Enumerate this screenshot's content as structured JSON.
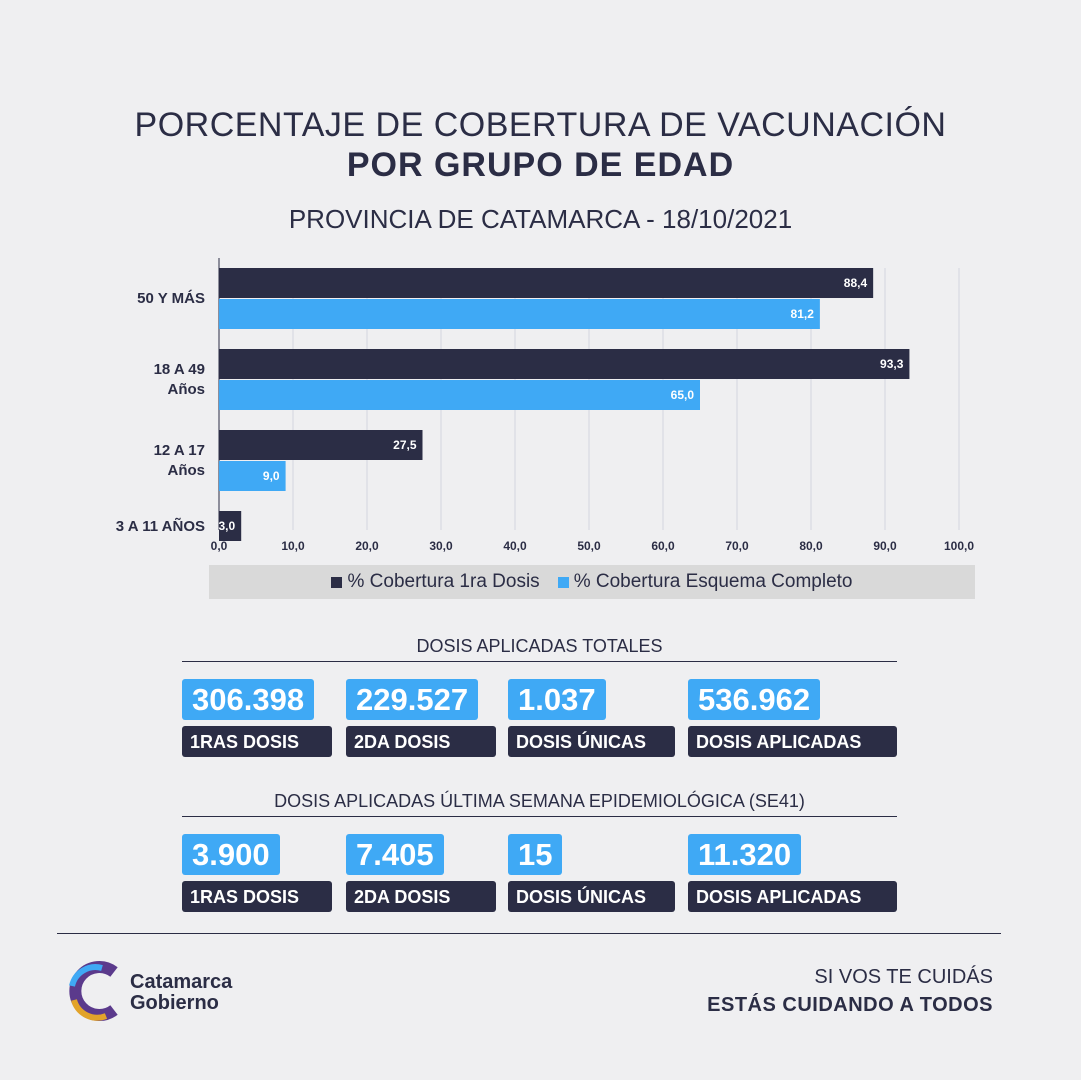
{
  "chart_data": {
    "type": "hbar",
    "title": "PORCENTAJE DE COBERTURA DE VACUNACIÓN",
    "subtitle": "POR GRUPO DE EDAD",
    "caption": "PROVINCIA DE CATAMARCA - 18/10/2021",
    "categories": [
      "50 Y MÁS",
      "18 A 49\nAños",
      "12 A 17\nAños",
      "3 A 11 AÑOS"
    ],
    "series": [
      {
        "name": "% Cobertura 1ra Dosis",
        "color": "#2b2d45",
        "values": [
          88.4,
          93.3,
          27.5,
          3.0
        ],
        "value_labels": [
          "88,4",
          "93,3",
          "27,5",
          "3,0"
        ]
      },
      {
        "name": "% Cobertura Esquema Completo",
        "color": "#3fa9f5",
        "values": [
          81.2,
          65.0,
          9.0,
          null
        ],
        "value_labels": [
          "81,2",
          "65,0",
          "9,0",
          null
        ]
      }
    ],
    "xlim": [
      0,
      100
    ],
    "xticks": [
      {
        "value": 0,
        "label": "0,0"
      },
      {
        "value": 10,
        "label": "10,0"
      },
      {
        "value": 20,
        "label": "20,0"
      },
      {
        "value": 30,
        "label": "30,0"
      },
      {
        "value": 40,
        "label": "40,0"
      },
      {
        "value": 50,
        "label": "50,0"
      },
      {
        "value": 60,
        "label": "60,0"
      },
      {
        "value": 70,
        "label": "70,0"
      },
      {
        "value": 80,
        "label": "80,0"
      },
      {
        "value": 90,
        "label": "90,0"
      },
      {
        "value": 100,
        "label": "100,0"
      }
    ],
    "grid": true,
    "legend": "bottom"
  },
  "sections": [
    {
      "title": "DOSIS APLICADAS TOTALES",
      "items": [
        {
          "value": "306.398",
          "label": "1RAS DOSIS"
        },
        {
          "value": "229.527",
          "label": "2DA DOSIS"
        },
        {
          "value": "1.037",
          "label": "DOSIS ÚNICAS"
        },
        {
          "value": "536.962",
          "label": "DOSIS APLICADAS"
        }
      ]
    },
    {
      "title": "DOSIS APLICADAS ÚLTIMA SEMANA EPIDEMIOLÓGICA (SE41)",
      "items": [
        {
          "value": "3.900",
          "label": "1RAS DOSIS"
        },
        {
          "value": "7.405",
          "label": "2DA DOSIS"
        },
        {
          "value": "15",
          "label": "DOSIS ÚNICAS"
        },
        {
          "value": "11.320",
          "label": "DOSIS APLICADAS"
        }
      ]
    }
  ],
  "footer": {
    "brand": [
      "Catamarca",
      "Gobierno"
    ],
    "tagline": [
      "SI VOS TE CUIDÁS",
      "ESTÁS CUIDANDO A TODOS"
    ]
  }
}
